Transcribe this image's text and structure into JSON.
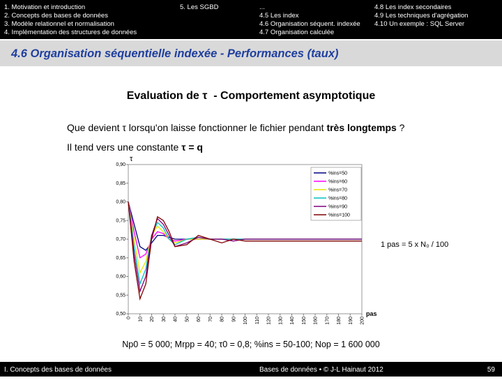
{
  "header": {
    "left": [
      "1. Motivation et introduction",
      "2. Concepts des bases de données",
      "3. Modèle relationnel et normalisation",
      "4. Implémentation des structures de données"
    ],
    "sgbd": "5. Les SGBD",
    "right_col1": [
      "...",
      "4.5 Les index",
      "4.6 Organisation séquent. indexée",
      "4.7 Organisation calculée"
    ],
    "right_col2": [
      "4.8 Les index secondaires",
      "4.9 Les techniques d'agrégation",
      "4.10 Un exemple : SQL Server"
    ]
  },
  "title": "4.6 Organisation séquentielle indexée - Performances (taux)",
  "subtitle": "Evaluation de τ  - Comportement asymptotique",
  "question": [
    "Que devient τ lorsqu'on laisse fonctionner le fichier pendant ",
    "très longtemps",
    " ?"
  ],
  "answer": [
    "Il tend vers une constante ",
    "τ = q"
  ],
  "chart_data": {
    "type": "line",
    "y_label": "τ",
    "x_label": "pas",
    "annotation": "1 pas = 5 x N₀ / 100",
    "x": [
      0,
      5,
      10,
      15,
      20,
      25,
      30,
      35,
      40,
      50,
      60,
      70,
      80,
      90,
      100,
      120,
      140,
      160,
      180,
      200
    ],
    "series": [
      {
        "name": "%ins=50",
        "color": "#000080",
        "values": [
          0.8,
          0.74,
          0.68,
          0.67,
          0.69,
          0.71,
          0.71,
          0.705,
          0.7,
          0.7,
          0.7,
          0.7,
          0.7,
          0.7,
          0.7,
          0.7,
          0.7,
          0.7,
          0.7,
          0.7
        ]
      },
      {
        "name": "%ins=60",
        "color": "#ff00ff",
        "values": [
          0.8,
          0.72,
          0.65,
          0.66,
          0.7,
          0.72,
          0.715,
          0.7,
          0.695,
          0.7,
          0.7,
          0.7,
          0.7,
          0.7,
          0.7,
          0.7,
          0.7,
          0.7,
          0.7,
          0.7
        ]
      },
      {
        "name": "%ins=70",
        "color": "#e6e600",
        "values": [
          0.8,
          0.7,
          0.61,
          0.64,
          0.71,
          0.735,
          0.72,
          0.7,
          0.69,
          0.7,
          0.7,
          0.7,
          0.7,
          0.7,
          0.7,
          0.7,
          0.7,
          0.7,
          0.7,
          0.7
        ]
      },
      {
        "name": "%ins=80",
        "color": "#00c0c0",
        "values": [
          0.8,
          0.68,
          0.58,
          0.62,
          0.71,
          0.745,
          0.73,
          0.7,
          0.685,
          0.7,
          0.705,
          0.7,
          0.7,
          0.7,
          0.7,
          0.7,
          0.7,
          0.7,
          0.7,
          0.7
        ]
      },
      {
        "name": "%ins=90",
        "color": "#800080",
        "values": [
          0.8,
          0.66,
          0.56,
          0.6,
          0.71,
          0.755,
          0.74,
          0.71,
          0.68,
          0.69,
          0.705,
          0.7,
          0.7,
          0.695,
          0.7,
          0.7,
          0.7,
          0.7,
          0.7,
          0.7
        ]
      },
      {
        "name": "%ins=100",
        "color": "#800000",
        "values": [
          0.8,
          0.64,
          0.54,
          0.58,
          0.7,
          0.76,
          0.75,
          0.72,
          0.68,
          0.685,
          0.71,
          0.7,
          0.69,
          0.7,
          0.695,
          0.695,
          0.695,
          0.695,
          0.695,
          0.695
        ]
      }
    ],
    "xlim": [
      0,
      200
    ],
    "xticks": [
      0,
      10,
      20,
      30,
      40,
      50,
      60,
      70,
      80,
      90,
      100,
      110,
      120,
      130,
      140,
      150,
      160,
      170,
      180,
      190,
      200
    ],
    "ylim": [
      0.5,
      0.9
    ],
    "yticks": [
      {
        "value": 0.5,
        "label": "0,50"
      },
      {
        "value": 0.55,
        "label": "0,55"
      },
      {
        "value": 0.6,
        "label": "0,60"
      },
      {
        "value": 0.65,
        "label": "0,65"
      },
      {
        "value": 0.7,
        "label": "0,70"
      },
      {
        "value": 0.75,
        "label": "0,75"
      },
      {
        "value": 0.8,
        "label": "0,80"
      },
      {
        "value": 0.85,
        "label": "0,85"
      },
      {
        "value": 0.9,
        "label": "0,90"
      }
    ],
    "grid": false
  },
  "params": "Np0 = 5 000; Mrpp = 40; τ0 = 0,8; %ins = 50-100; Nop = 1 600 000",
  "footer": {
    "left": "I. Concepts des bases de données",
    "center": "Bases de données • © J-L Hainaut 2012",
    "page": "59"
  }
}
